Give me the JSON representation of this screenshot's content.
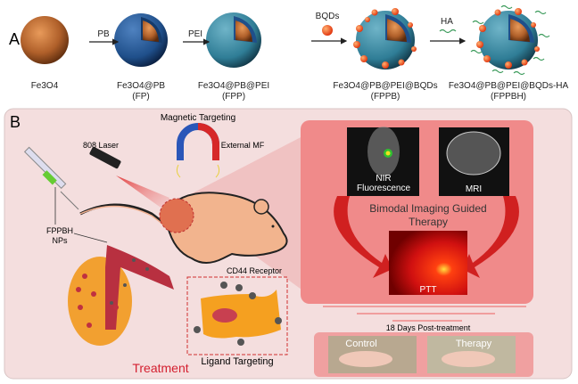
{
  "panel_a": {
    "label": "A",
    "steps": [
      {
        "reagent": "PB"
      },
      {
        "reagent": "PEI"
      },
      {
        "reagent": "BQDs"
      },
      {
        "reagent": "HA"
      }
    ],
    "particles": [
      {
        "name": "Fe3O4",
        "abbr": ""
      },
      {
        "name": "Fe3O4@PB",
        "abbr": "(FP)"
      },
      {
        "name": "Fe3O4@PB@PEI",
        "abbr": "(FPP)"
      },
      {
        "name": "Fe3O4@PB@PEI@BQDs",
        "abbr": "(FPPB)"
      },
      {
        "name": "Fe3O4@PB@PEI@BQDs-HA",
        "abbr": "(FPPBH)"
      }
    ]
  },
  "panel_b": {
    "label": "B",
    "magnetic_targeting": "Magnetic Targeting",
    "laser": "808 Laser",
    "external_mf": "External MF",
    "nps_line1": "FPPBH",
    "nps_line2": "NPs",
    "cd44": "CD44 Receptor",
    "ligand_targeting": "Ligand Targeting",
    "treatment": "Treatment",
    "nir_line1": "NIR",
    "nir_line2": "Fluorescence",
    "mri": "MRI",
    "bimodal_line1": "Bimodal Imaging Guided",
    "bimodal_line2": "Therapy",
    "ptt": "PTT",
    "post_treatment": "18 Days Post-treatment",
    "control": "Control",
    "therapy": "Therapy"
  },
  "colors": {
    "core": "#b0602a",
    "pb_shell": "#1f4f8a",
    "pei_shell": "#2f7d96",
    "bqd": "#f04a10",
    "ha": "#3a9a5a",
    "panel_bg": "#f4dede",
    "imaging_panel": "#f08a8a",
    "treatment_text": "#d42030"
  }
}
